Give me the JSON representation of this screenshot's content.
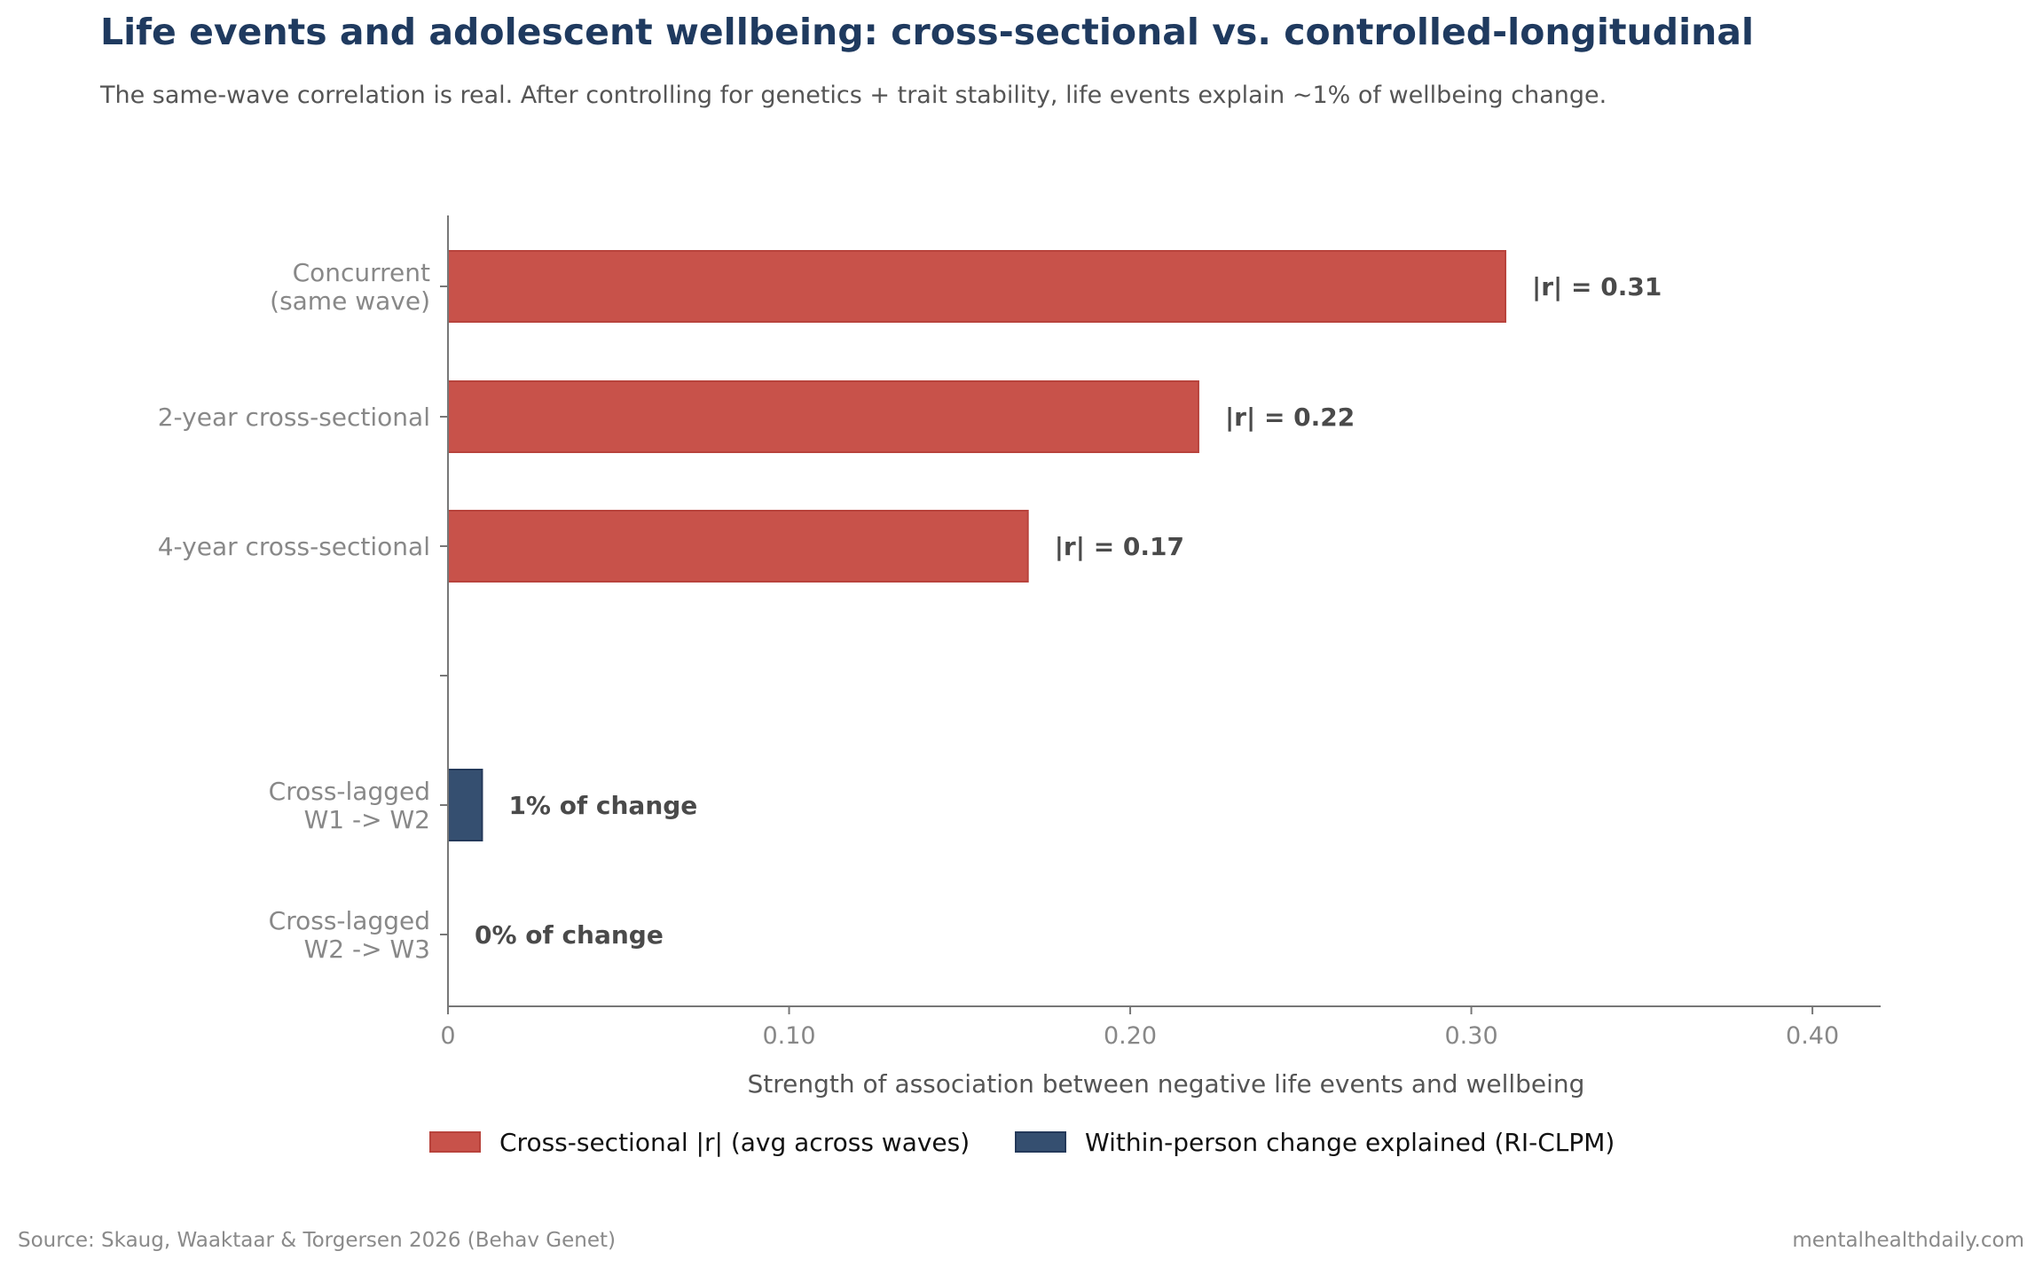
{
  "header": {
    "title": "Life events and adolescent wellbeing: cross-sectional vs. controlled-longitudinal",
    "subtitle": "The same-wave correlation is real. After controlling for genetics + trait stability, life events explain ~1% of wellbeing change."
  },
  "footer": {
    "source": "Source: Skaug, Waaktaar & Torgersen 2026 (Behav Genet)",
    "brand": "mentalhealthdaily.com"
  },
  "colors": {
    "cross_sectional": "#c8524a",
    "within_person": "#354f70",
    "title": "#1f3a5f",
    "axis": "#777777",
    "tick_label": "#888888",
    "value_label": "#4a4a4a"
  },
  "chart_data": {
    "type": "bar",
    "orientation": "horizontal",
    "title": "Life events and adolescent wellbeing: cross-sectional vs. controlled-longitudinal",
    "subtitle": "The same-wave correlation is real. After controlling for genetics + trait stability, life events explain ~1% of wellbeing change.",
    "xlabel": "Strength of association between negative life events and wellbeing",
    "ylabel": "",
    "xlim": [
      0,
      0.42
    ],
    "xticks": [
      0,
      0.1,
      0.2,
      0.3,
      0.4
    ],
    "xtick_labels": [
      "0",
      "0.10",
      "0.20",
      "0.30",
      "0.40"
    ],
    "grid": false,
    "legend_position": "bottom-center",
    "categories": [
      [
        "Concurrent",
        "(same wave)"
      ],
      [
        "2-year cross-sectional"
      ],
      [
        "4-year cross-sectional"
      ],
      [],
      [
        "Cross-lagged",
        "W1 -> W2"
      ],
      [
        "Cross-lagged",
        "W2 -> W3"
      ]
    ],
    "series": [
      {
        "name": "Cross-sectional |r| (avg across waves)",
        "color": "#c8524a",
        "values": [
          0.31,
          0.22,
          0.17,
          null,
          null,
          null
        ],
        "labels": [
          "|r| = 0.31",
          "|r| = 0.22",
          "|r| = 0.17",
          "",
          "",
          ""
        ]
      },
      {
        "name": "Within-person change explained (RI-CLPM)",
        "color": "#354f70",
        "values": [
          null,
          null,
          null,
          null,
          0.01,
          0.0
        ],
        "labels": [
          "",
          "",
          "",
          "",
          "1% of change",
          "0% of change"
        ]
      }
    ]
  }
}
